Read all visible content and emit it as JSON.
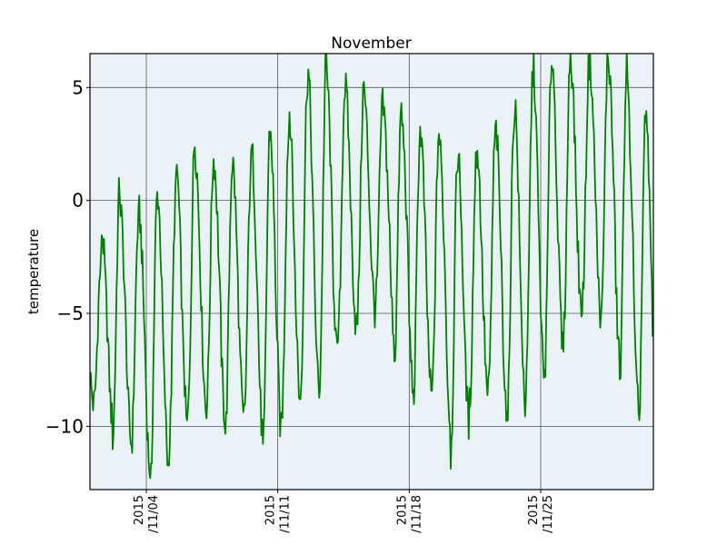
{
  "chart_data": {
    "type": "line",
    "title": "November",
    "xlabel": "",
    "ylabel": "temperature",
    "ylim": [
      -12.8,
      6.5
    ],
    "xlim": [
      "2015-11-01",
      "2015-12-01"
    ],
    "grid": true,
    "legend": "none",
    "colors": {
      "line": "#008000",
      "plot_bg": "#eaf2f8",
      "grid": "#555555",
      "axes": "#000000"
    },
    "y_ticks": [
      {
        "value": 5,
        "label": "5"
      },
      {
        "value": 0,
        "label": "0"
      },
      {
        "value": -5,
        "label": "−5"
      },
      {
        "value": -10,
        "label": "−10"
      }
    ],
    "x_ticks": [
      {
        "date": "2015-11-04",
        "line1": "2015",
        "line2": "/11/04"
      },
      {
        "date": "2015-11-11",
        "line1": "2015",
        "line2": "/11/11"
      },
      {
        "date": "2015-11-18",
        "line1": "2015",
        "line2": "/11/18"
      },
      {
        "date": "2015-11-25",
        "line1": "2015",
        "line2": "/11/25"
      }
    ],
    "series": [
      {
        "sampling": "hourly",
        "start": "2015-11-01T00:00",
        "daily": [
          {
            "date": "2015-11-01",
            "min": -9.0,
            "max": -3.0
          },
          {
            "date": "2015-11-02",
            "min": -10.5,
            "max": 0.6
          },
          {
            "date": "2015-11-03",
            "min": -10.8,
            "max": -1.0
          },
          {
            "date": "2015-11-04",
            "min": -12.8,
            "max": 0.2
          },
          {
            "date": "2015-11-05",
            "min": -11.0,
            "max": 0.5
          },
          {
            "date": "2015-11-06",
            "min": -9.5,
            "max": 2.7
          },
          {
            "date": "2015-11-07",
            "min": -9.0,
            "max": 1.8
          },
          {
            "date": "2015-11-08",
            "min": -10.2,
            "max": 1.7
          },
          {
            "date": "2015-11-09",
            "min": -9.5,
            "max": 1.6
          },
          {
            "date": "2015-11-10",
            "min": -11.2,
            "max": 3.1
          },
          {
            "date": "2015-11-11",
            "min": -9.5,
            "max": 3.0
          },
          {
            "date": "2015-11-12",
            "min": -8.5,
            "max": 5.4
          },
          {
            "date": "2015-11-13",
            "min": -8.3,
            "max": 6.3
          },
          {
            "date": "2015-11-14",
            "min": -6.0,
            "max": 5.0
          },
          {
            "date": "2015-11-15",
            "min": -5.5,
            "max": 5.1
          },
          {
            "date": "2015-11-16",
            "min": -4.5,
            "max": 4.2
          },
          {
            "date": "2015-11-17",
            "min": -7.0,
            "max": 4.0
          },
          {
            "date": "2015-11-18",
            "min": -9.0,
            "max": 3.0
          },
          {
            "date": "2015-11-19",
            "min": -8.5,
            "max": 3.1
          },
          {
            "date": "2015-11-20",
            "min": -11.2,
            "max": 2.0
          },
          {
            "date": "2015-11-21",
            "min": -9.0,
            "max": 2.0
          },
          {
            "date": "2015-11-22",
            "min": -8.5,
            "max": 2.9
          },
          {
            "date": "2015-11-23",
            "min": -10.0,
            "max": 3.6
          },
          {
            "date": "2015-11-24",
            "min": -8.5,
            "max": 5.6
          },
          {
            "date": "2015-11-25",
            "min": -7.5,
            "max": 6.2
          },
          {
            "date": "2015-11-26",
            "min": -6.0,
            "max": 6.5
          },
          {
            "date": "2015-11-27",
            "min": -4.5,
            "max": 6.1
          },
          {
            "date": "2015-11-28",
            "min": -5.5,
            "max": 6.3
          },
          {
            "date": "2015-11-29",
            "min": -8.0,
            "max": 6.2
          },
          {
            "date": "2015-11-30",
            "min": -10.1,
            "max": 3.5
          }
        ]
      }
    ]
  }
}
